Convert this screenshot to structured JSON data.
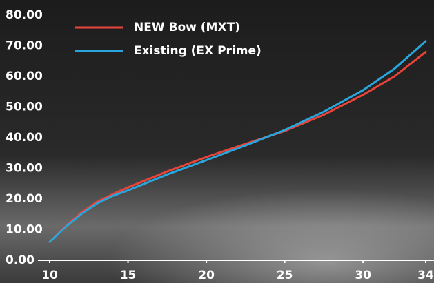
{
  "chart_data": {
    "type": "line",
    "x": [
      10,
      11,
      12,
      13,
      14,
      15,
      17.5,
      20,
      22.5,
      25,
      27.5,
      30,
      32,
      34
    ],
    "series": [
      {
        "name": "NEW Bow (MXT)",
        "color": "#e8443a",
        "values": [
          6,
          11,
          15.5,
          19,
          21.5,
          23.8,
          29,
          33.7,
          38,
          42.2,
          47.5,
          54,
          60,
          68
        ]
      },
      {
        "name": "Existing (EX Prime)",
        "color": "#2aa6de",
        "values": [
          6,
          10.8,
          15,
          18.5,
          21,
          22.8,
          28,
          32.7,
          37.5,
          42.5,
          48.5,
          55.5,
          62.5,
          71.5
        ]
      }
    ],
    "xlim": [
      10,
      34
    ],
    "xticks": [
      10,
      15,
      20,
      25,
      30,
      34
    ],
    "ylim": [
      0,
      80
    ],
    "yticks": [
      {
        "value": 0,
        "label": "0.00"
      },
      {
        "value": 10,
        "label": "10.00"
      },
      {
        "value": 20,
        "label": "20.00"
      },
      {
        "value": 30,
        "label": "30.00"
      },
      {
        "value": 40,
        "label": "40.00"
      },
      {
        "value": 50,
        "label": "50.00"
      },
      {
        "value": 60,
        "label": "60.00"
      },
      {
        "value": 70,
        "label": "70.00"
      },
      {
        "value": 80,
        "label": "80.00"
      }
    ],
    "grid": false,
    "legend": "upper-left"
  }
}
